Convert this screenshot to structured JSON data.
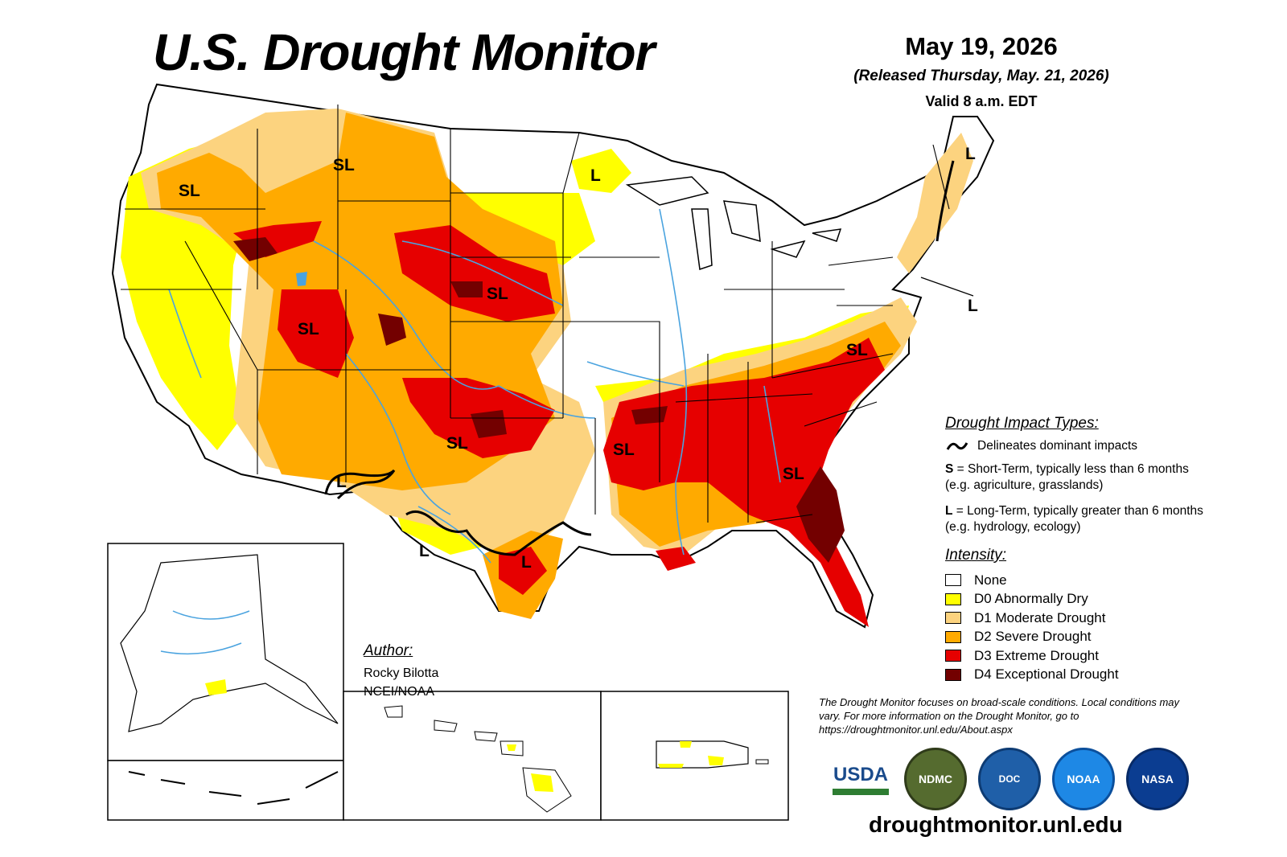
{
  "header": {
    "title": "U.S. Drought Monitor",
    "map_date": "May 19, 2026",
    "released": "(Released Thursday, May. 21, 2026)",
    "valid": "Valid 8 a.m. EDT"
  },
  "map_labels": [
    "SL",
    "SL",
    "SL",
    "SL",
    "SL",
    "SL",
    "SL",
    "SL",
    "L",
    "L",
    "L",
    "L",
    "L",
    "L"
  ],
  "impact_legend": {
    "heading": "Drought Impact Types:",
    "line_desc": "Delineates dominant impacts",
    "short_code": "S",
    "short_desc": "= Short-Term, typically less than 6 months (e.g. agriculture, grasslands)",
    "long_code": "L",
    "long_desc": "= Long-Term, typically greater than 6 months (e.g. hydrology, ecology)"
  },
  "intensity_legend": {
    "heading": "Intensity:",
    "items": [
      {
        "label": "None",
        "color": "#ffffff"
      },
      {
        "label": "D0 Abnormally Dry",
        "color": "#ffff00"
      },
      {
        "label": "D1 Moderate Drought",
        "color": "#fcd37f"
      },
      {
        "label": "D2 Severe Drought",
        "color": "#ffaa00"
      },
      {
        "label": "D3 Extreme Drought",
        "color": "#e60000"
      },
      {
        "label": "D4 Exceptional Drought",
        "color": "#730000"
      }
    ]
  },
  "author": {
    "heading": "Author:",
    "name": "Rocky Bilotta",
    "org": "NCEI/NOAA"
  },
  "disclaimer": "The Drought Monitor focuses on broad-scale conditions. Local conditions may vary. For more information on the Drought Monitor, go to https://droughtmonitor.unl.edu/About.aspx",
  "logos": [
    "USDA",
    "NDMC",
    "DOC",
    "NOAA",
    "NASA"
  ],
  "website": "droughtmonitor.unl.edu",
  "colors": {
    "water": "#4aa3df",
    "border": "#000000"
  }
}
